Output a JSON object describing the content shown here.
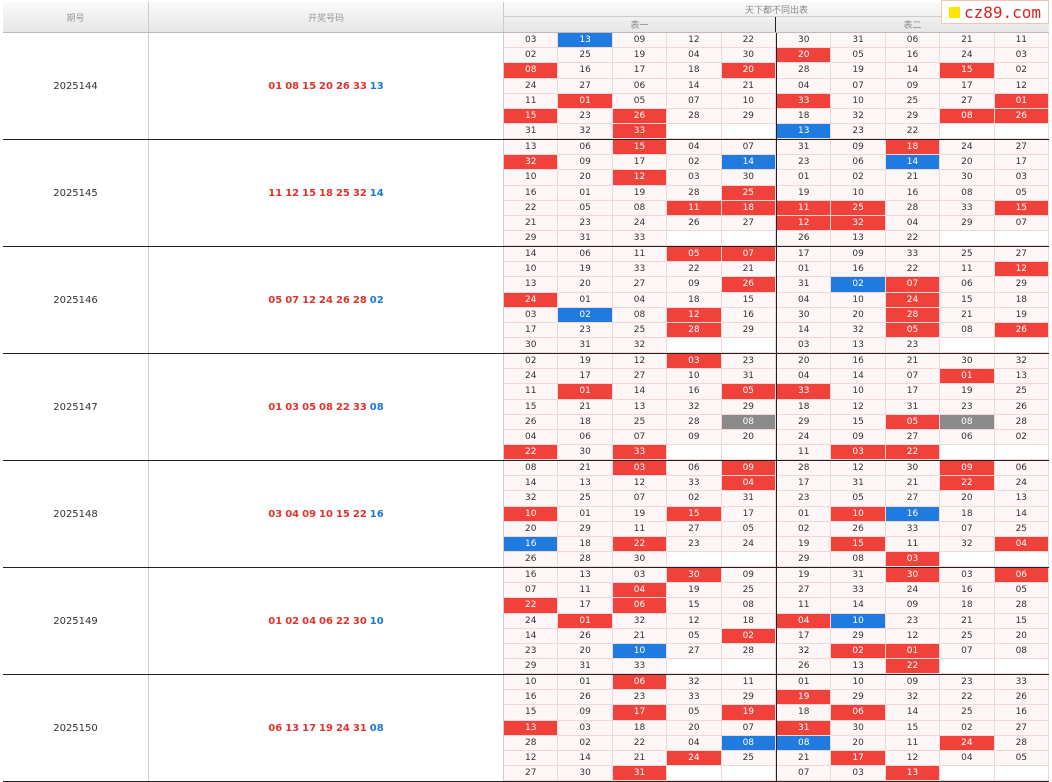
{
  "header": {
    "issue_label": "期号",
    "numbers_label": "开奖号码",
    "group_label": "天下都不同出表",
    "table1_label": "表一",
    "table2_label": "表二",
    "logo_text": "cz89.com"
  },
  "colors": {
    "red": "#f0423b",
    "blue": "#1f7be0",
    "gray": "#8a8a8a",
    "red_text": "#e0332c",
    "blue_text": "#1e78d8"
  },
  "periods": [
    {
      "issue": "2025144",
      "reds": [
        "01",
        "08",
        "15",
        "20",
        "26",
        "33"
      ],
      "blue": "13",
      "t1": [
        [
          "03",
          "13b",
          "09",
          "12",
          "22"
        ],
        [
          "02",
          "25",
          "19",
          "04",
          "30"
        ],
        [
          "08r",
          "16",
          "17",
          "18",
          "20r"
        ],
        [
          "24",
          "27",
          "06",
          "14",
          "21"
        ],
        [
          "11",
          "01r",
          "05",
          "07",
          "10"
        ],
        [
          "15r",
          "23",
          "26r",
          "28",
          "29"
        ],
        [
          "31",
          "32",
          "33r",
          "",
          ""
        ]
      ],
      "t2": [
        [
          "30",
          "31",
          "06",
          "21",
          "11"
        ],
        [
          "20r",
          "05",
          "16",
          "24",
          "03"
        ],
        [
          "28",
          "19",
          "14",
          "15r",
          "02"
        ],
        [
          "04",
          "07",
          "09",
          "17",
          "12"
        ],
        [
          "33r",
          "10",
          "25",
          "27",
          "01r"
        ],
        [
          "18",
          "32",
          "29",
          "08r",
          "26r"
        ],
        [
          "13b",
          "23",
          "22",
          "",
          ""
        ]
      ]
    },
    {
      "issue": "2025145",
      "reds": [
        "11",
        "12",
        "15",
        "18",
        "25",
        "32"
      ],
      "blue": "14",
      "t1": [
        [
          "13",
          "06",
          "15r",
          "04",
          "07"
        ],
        [
          "32r",
          "09",
          "17",
          "02",
          "14b"
        ],
        [
          "10",
          "20",
          "12r",
          "03",
          "30"
        ],
        [
          "16",
          "01",
          "19",
          "28",
          "25r"
        ],
        [
          "22",
          "05",
          "08",
          "11r",
          "18r"
        ],
        [
          "21",
          "23",
          "24",
          "26",
          "27"
        ],
        [
          "29",
          "31",
          "33",
          "",
          ""
        ]
      ],
      "t2": [
        [
          "31",
          "09",
          "18r",
          "24",
          "27"
        ],
        [
          "23",
          "06",
          "14b",
          "20",
          "17"
        ],
        [
          "01",
          "02",
          "21",
          "30",
          "03"
        ],
        [
          "19",
          "10",
          "16",
          "08",
          "05"
        ],
        [
          "11r",
          "25r",
          "28",
          "33",
          "15r"
        ],
        [
          "12r",
          "32r",
          "04",
          "29",
          "07"
        ],
        [
          "26",
          "13",
          "22",
          "",
          ""
        ]
      ]
    },
    {
      "issue": "2025146",
      "reds": [
        "05",
        "07",
        "12",
        "24",
        "26",
        "28"
      ],
      "blue": "02",
      "t1": [
        [
          "14",
          "06",
          "11",
          "05r",
          "07r"
        ],
        [
          "10",
          "19",
          "33",
          "22",
          "21"
        ],
        [
          "13",
          "20",
          "27",
          "09",
          "26r"
        ],
        [
          "24r",
          "01",
          "04",
          "18",
          "15"
        ],
        [
          "03",
          "02b",
          "08",
          "12r",
          "16"
        ],
        [
          "17",
          "23",
          "25",
          "28r",
          "29"
        ],
        [
          "30",
          "31",
          "32",
          "",
          ""
        ]
      ],
      "t2": [
        [
          "17",
          "09",
          "33",
          "25",
          "27"
        ],
        [
          "01",
          "16",
          "22",
          "11",
          "12r"
        ],
        [
          "31",
          "02b",
          "07r",
          "06",
          "29"
        ],
        [
          "04",
          "10",
          "24r",
          "15",
          "18"
        ],
        [
          "30",
          "20",
          "28r",
          "21",
          "19"
        ],
        [
          "14",
          "32",
          "05r",
          "08",
          "26r"
        ],
        [
          "03",
          "13",
          "23",
          "",
          ""
        ]
      ]
    },
    {
      "issue": "2025147",
      "reds": [
        "01",
        "03",
        "05",
        "08",
        "22",
        "33"
      ],
      "blue": "08",
      "t1": [
        [
          "02",
          "19",
          "12",
          "03r",
          "23"
        ],
        [
          "24",
          "17",
          "27",
          "10",
          "31"
        ],
        [
          "11",
          "01r",
          "14",
          "16",
          "05r"
        ],
        [
          "15",
          "21",
          "13",
          "32",
          "29"
        ],
        [
          "26",
          "18",
          "25",
          "28",
          "08g"
        ],
        [
          "04",
          "06",
          "07",
          "09",
          "20"
        ],
        [
          "22r",
          "30",
          "33r",
          "",
          ""
        ]
      ],
      "t2": [
        [
          "20",
          "16",
          "21",
          "30",
          "32"
        ],
        [
          "04",
          "14",
          "07",
          "01r",
          "13"
        ],
        [
          "33r",
          "10",
          "17",
          "19",
          "25"
        ],
        [
          "18",
          "12",
          "31",
          "23",
          "26"
        ],
        [
          "29",
          "15",
          "05r",
          "08g",
          "28"
        ],
        [
          "24",
          "09",
          "27",
          "06",
          "02"
        ],
        [
          "11",
          "03r",
          "22r",
          "",
          ""
        ]
      ]
    },
    {
      "issue": "2025148",
      "reds": [
        "03",
        "04",
        "09",
        "10",
        "15",
        "22"
      ],
      "blue": "16",
      "t1": [
        [
          "08",
          "21",
          "03r",
          "06",
          "09r"
        ],
        [
          "14",
          "13",
          "12",
          "33",
          "04r"
        ],
        [
          "32",
          "25",
          "07",
          "02",
          "31"
        ],
        [
          "10r",
          "01",
          "19",
          "15r",
          "17"
        ],
        [
          "20",
          "29",
          "11",
          "27",
          "05"
        ],
        [
          "16b",
          "18",
          "22r",
          "23",
          "24"
        ],
        [
          "26",
          "28",
          "30",
          "",
          ""
        ]
      ],
      "t2": [
        [
          "28",
          "12",
          "30",
          "09r",
          "06"
        ],
        [
          "17",
          "31",
          "21",
          "22r",
          "24"
        ],
        [
          "23",
          "05",
          "27",
          "20",
          "13"
        ],
        [
          "01",
          "10r",
          "16b",
          "18",
          "14"
        ],
        [
          "02",
          "26",
          "33",
          "07",
          "25"
        ],
        [
          "19",
          "15r",
          "11",
          "32",
          "04r"
        ],
        [
          "29",
          "08",
          "03r",
          "",
          ""
        ]
      ]
    },
    {
      "issue": "2025149",
      "reds": [
        "01",
        "02",
        "04",
        "06",
        "22",
        "30"
      ],
      "blue": "10",
      "t1": [
        [
          "16",
          "13",
          "03",
          "30r",
          "09"
        ],
        [
          "07",
          "11",
          "04r",
          "19",
          "25"
        ],
        [
          "22r",
          "17",
          "06r",
          "15",
          "08"
        ],
        [
          "24",
          "01r",
          "32",
          "12",
          "18"
        ],
        [
          "14",
          "26",
          "21",
          "05",
          "02r"
        ],
        [
          "23",
          "20",
          "10b",
          "27",
          "28"
        ],
        [
          "29",
          "31",
          "33",
          "",
          ""
        ]
      ],
      "t2": [
        [
          "19",
          "31",
          "30r",
          "03",
          "06r"
        ],
        [
          "27",
          "33",
          "24",
          "16",
          "05"
        ],
        [
          "11",
          "14",
          "09",
          "18",
          "28"
        ],
        [
          "04r",
          "10b",
          "23",
          "21",
          "15"
        ],
        [
          "17",
          "29",
          "12",
          "25",
          "20"
        ],
        [
          "32",
          "02r",
          "01r",
          "07",
          "08"
        ],
        [
          "26",
          "13",
          "22r",
          "",
          ""
        ]
      ]
    },
    {
      "issue": "2025150",
      "reds": [
        "06",
        "13",
        "17",
        "19",
        "24",
        "31"
      ],
      "blue": "08",
      "t1": [
        [
          "10",
          "01",
          "06r",
          "32",
          "11"
        ],
        [
          "16",
          "26",
          "23",
          "33",
          "29"
        ],
        [
          "15",
          "09",
          "17r",
          "05",
          "19r"
        ],
        [
          "13r",
          "03",
          "18",
          "20",
          "07"
        ],
        [
          "28",
          "02",
          "22",
          "04",
          "08b"
        ],
        [
          "12",
          "14",
          "21",
          "24r",
          "25"
        ],
        [
          "27",
          "30",
          "31r",
          "",
          ""
        ]
      ],
      "t2": [
        [
          "01",
          "10",
          "09",
          "23",
          "33"
        ],
        [
          "19r",
          "29",
          "32",
          "22",
          "26"
        ],
        [
          "18",
          "06r",
          "14",
          "25",
          "16"
        ],
        [
          "31r",
          "30",
          "15",
          "02",
          "27"
        ],
        [
          "08b",
          "20",
          "11",
          "24r",
          "28"
        ],
        [
          "21",
          "17r",
          "12",
          "04",
          "05"
        ],
        [
          "07",
          "03",
          "13r",
          "",
          ""
        ]
      ]
    }
  ]
}
